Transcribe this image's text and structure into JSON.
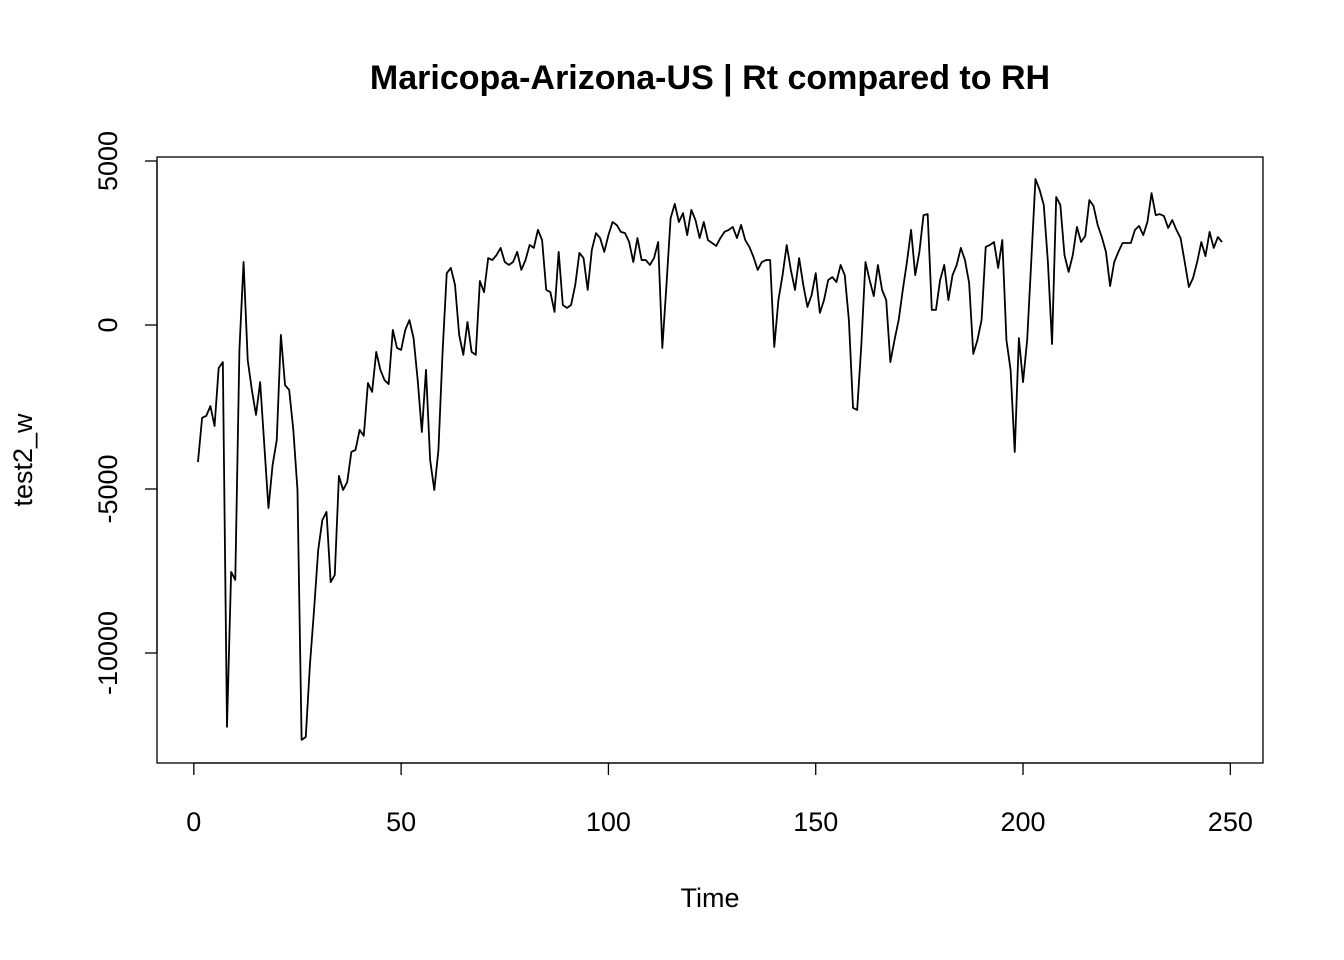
{
  "chart_data": {
    "type": "line",
    "title": "Maricopa-Arizona-US | Rt compared to RH",
    "xlabel": "Time",
    "ylabel": "test2_w",
    "color": "#000000",
    "xlim": [
      -8.88,
      257.88
    ],
    "ylim": [
      -13354,
      5122
    ],
    "xticks": [
      0,
      50,
      100,
      150,
      200,
      250
    ],
    "yticks": [
      -10000,
      -5000,
      0,
      5000
    ],
    "x": [
      1,
      2,
      3,
      4,
      5,
      6,
      7,
      8,
      9,
      10,
      11,
      12,
      13,
      14,
      15,
      16,
      17,
      18,
      19,
      20,
      21,
      22,
      23,
      24,
      25,
      26,
      27,
      28,
      29,
      30,
      31,
      32,
      33,
      34,
      35,
      36,
      37,
      38,
      39,
      40,
      41,
      42,
      43,
      44,
      45,
      46,
      47,
      48,
      49,
      50,
      51,
      52,
      53,
      54,
      55,
      56,
      57,
      58,
      59,
      60,
      61,
      62,
      63,
      64,
      65,
      66,
      67,
      68,
      69,
      70,
      71,
      72,
      73,
      74,
      75,
      76,
      77,
      78,
      79,
      80,
      81,
      82,
      83,
      84,
      85,
      86,
      87,
      88,
      89,
      90,
      91,
      92,
      93,
      94,
      95,
      96,
      97,
      98,
      99,
      100,
      101,
      102,
      103,
      104,
      105,
      106,
      107,
      108,
      109,
      110,
      111,
      112,
      113,
      114,
      115,
      116,
      117,
      118,
      119,
      120,
      121,
      122,
      123,
      124,
      125,
      126,
      127,
      128,
      129,
      130,
      131,
      132,
      133,
      134,
      135,
      136,
      137,
      138,
      139,
      140,
      141,
      142,
      143,
      144,
      145,
      146,
      147,
      148,
      149,
      150,
      151,
      152,
      153,
      154,
      155,
      156,
      157,
      158,
      159,
      160,
      161,
      162,
      163,
      164,
      165,
      166,
      167,
      168,
      169,
      170,
      171,
      172,
      173,
      174,
      175,
      176,
      177,
      178,
      179,
      180,
      181,
      182,
      183,
      184,
      185,
      186,
      187,
      188,
      189,
      190,
      191,
      192,
      193,
      194,
      195,
      196,
      197,
      198,
      199,
      200,
      201,
      202,
      203,
      204,
      205,
      206,
      207,
      208,
      209,
      210,
      211,
      212,
      213,
      214,
      215,
      216,
      217,
      218,
      219,
      220,
      221,
      222,
      223,
      224,
      225,
      226,
      227,
      228,
      229,
      230,
      231,
      232,
      233,
      234,
      235,
      236,
      237,
      238,
      239,
      240,
      241,
      242,
      243,
      244,
      245,
      246,
      247,
      248
    ],
    "values": [
      -4180,
      -2830,
      -2770,
      -2470,
      -3080,
      -1310,
      -1130,
      -12250,
      -7530,
      -7770,
      -760,
      1920,
      -1070,
      -1980,
      -2740,
      -1740,
      -3660,
      -5580,
      -4270,
      -3510,
      -300,
      -1830,
      -1980,
      -3200,
      -5030,
      -12650,
      -12560,
      -10370,
      -8690,
      -6860,
      -5950,
      -5700,
      -7840,
      -7620,
      -4600,
      -5030,
      -4790,
      -3870,
      -3810,
      -3200,
      -3380,
      -1770,
      -2040,
      -820,
      -1370,
      -1680,
      -1800,
      -150,
      -700,
      -760,
      -150,
      150,
      -400,
      -1680,
      -3260,
      -1370,
      -4120,
      -5030,
      -3810,
      -820,
      1580,
      1740,
      1220,
      -300,
      -910,
      90,
      -820,
      -910,
      1340,
      1000,
      2040,
      1980,
      2130,
      2350,
      1920,
      1830,
      1920,
      2230,
      1680,
      1980,
      2440,
      2350,
      2900,
      2590,
      1070,
      1000,
      400,
      2230,
      610,
      520,
      610,
      1220,
      2200,
      2040,
      1070,
      2290,
      2800,
      2650,
      2230,
      2740,
      3140,
      3050,
      2840,
      2800,
      2530,
      1920,
      2650,
      1980,
      1980,
      1830,
      2040,
      2530,
      -700,
      1220,
      3260,
      3690,
      3140,
      3410,
      2740,
      3510,
      3200,
      2650,
      3140,
      2590,
      2500,
      2410,
      2650,
      2840,
      2900,
      2990,
      2650,
      3050,
      2590,
      2380,
      2070,
      1680,
      1920,
      1980,
      1980,
      -670,
      760,
      1520,
      2440,
      1680,
      1070,
      2040,
      1220,
      550,
      910,
      1580,
      370,
      760,
      1370,
      1460,
      1310,
      1830,
      1520,
      150,
      -2530,
      -2590,
      -610,
      1920,
      1370,
      880,
      1830,
      1070,
      760,
      -1130,
      -460,
      150,
      1070,
      1920,
      2900,
      1520,
      2230,
      3350,
      3380,
      460,
      460,
      1370,
      1830,
      760,
      1520,
      1830,
      2350,
      1980,
      1280,
      -880,
      -460,
      150,
      2380,
      2440,
      2530,
      1740,
      2590,
      -460,
      -1370,
      -3870,
      -400,
      -1740,
      -460,
      1980,
      4450,
      4120,
      3660,
      1920,
      -580,
      3900,
      3660,
      2130,
      1620,
      2130,
      2990,
      2530,
      2710,
      3810,
      3630,
      3050,
      2680,
      2230,
      1190,
      1920,
      2230,
      2500,
      2500,
      2500,
      2900,
      3020,
      2740,
      3140,
      4020,
      3350,
      3380,
      3320,
      2960,
      3200,
      2900,
      2650,
      1920,
      1160,
      1430,
      1920,
      2530,
      2100,
      2840,
      2350,
      2680,
      2530
    ]
  }
}
